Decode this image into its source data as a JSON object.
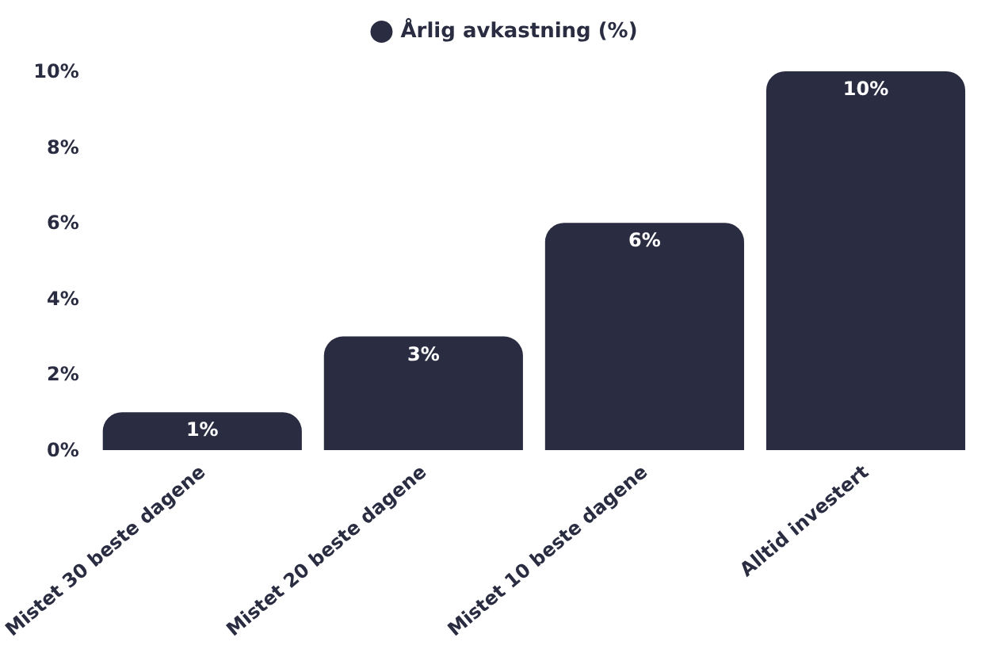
{
  "chart_data": {
    "type": "bar",
    "categories": [
      "Mistet 30 beste dagene",
      "Mistet 20 beste dagene",
      "Mistet 10 beste dagene",
      "Alltid investert"
    ],
    "series": [
      {
        "name": "Årlig avkastning (%)",
        "color": "#2a2d41",
        "values": [
          1,
          3,
          6,
          10
        ],
        "value_labels": [
          "1%",
          "3%",
          "6%",
          "10%"
        ]
      }
    ],
    "ylim": [
      0,
      10
    ],
    "yticks": [
      {
        "value": 0,
        "label": "0%"
      },
      {
        "value": 2,
        "label": "2%"
      },
      {
        "value": 4,
        "label": "4%"
      },
      {
        "value": 6,
        "label": "6%"
      },
      {
        "value": 8,
        "label": "8%"
      },
      {
        "value": 10,
        "label": "10%"
      }
    ],
    "grid": false,
    "legend": "top"
  }
}
